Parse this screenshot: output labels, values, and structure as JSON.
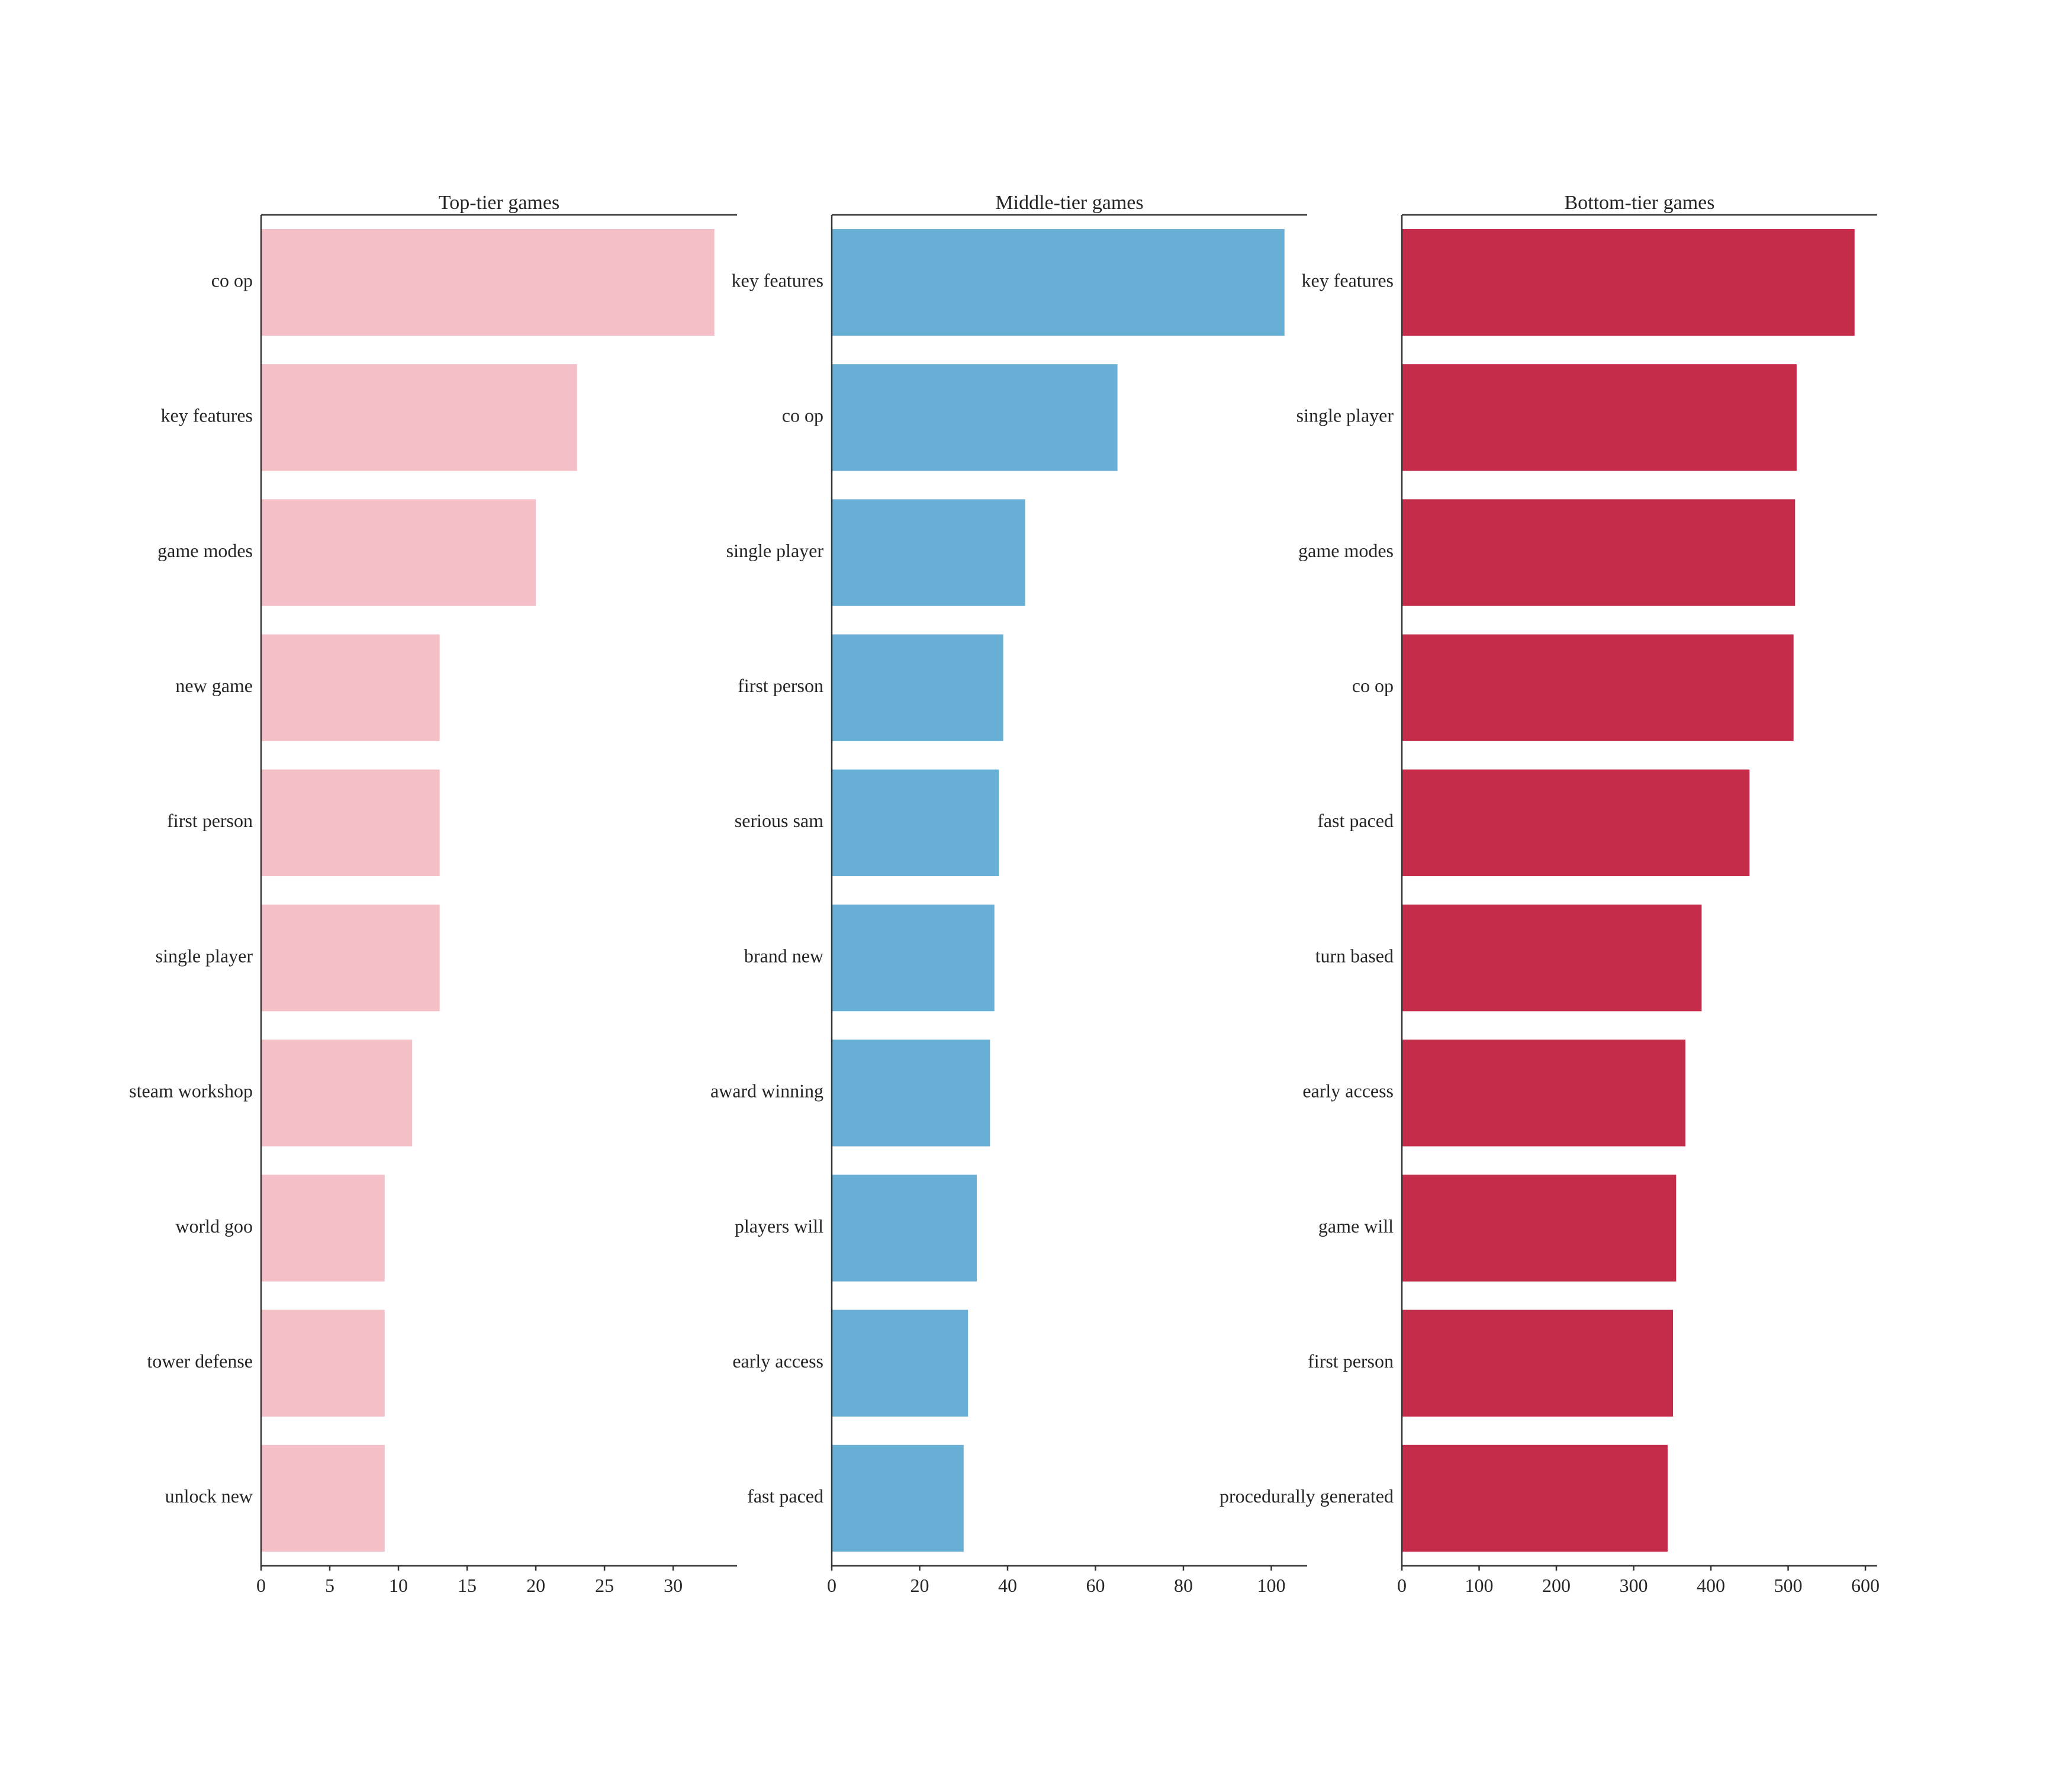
{
  "chart_data": [
    {
      "type": "bar",
      "orientation": "horizontal",
      "title": "Top-tier games",
      "color": "#f5bfc8",
      "categories": [
        "co op",
        "key features",
        "game modes",
        "new game",
        "first person",
        "single player",
        "steam workshop",
        "world goo",
        "tower defense",
        "unlock new"
      ],
      "values": [
        33,
        23,
        20,
        13,
        13,
        13,
        11,
        9,
        9,
        9
      ],
      "xticks": [
        "0",
        "5",
        "10",
        "15",
        "20",
        "25",
        "30"
      ],
      "xlim": [
        0,
        34.65
      ],
      "grid": false
    },
    {
      "type": "bar",
      "orientation": "horizontal",
      "title": "Middle-tier games",
      "color": "#68afd6",
      "categories": [
        "key features",
        "co op",
        "single player",
        "first person",
        "serious sam",
        "brand new",
        "award winning",
        "players will",
        "early access",
        "fast paced"
      ],
      "values": [
        103,
        65,
        44,
        39,
        38,
        37,
        36,
        33,
        31,
        30
      ],
      "xticks": [
        "0",
        "20",
        "40",
        "60",
        "80",
        "100"
      ],
      "xlim": [
        0,
        108.15
      ],
      "grid": false
    },
    {
      "type": "bar",
      "orientation": "horizontal",
      "title": "Bottom-tier games",
      "color": "#c42c4a",
      "categories": [
        "key features",
        "single player",
        "game modes",
        "co op",
        "fast paced",
        "turn based",
        "early access",
        "game will",
        "first person",
        "procedurally generated"
      ],
      "values": [
        586,
        511,
        509,
        507,
        450,
        388,
        367,
        355,
        351,
        344
      ],
      "xticks": [
        "0",
        "100",
        "200",
        "300",
        "400",
        "500",
        "600"
      ],
      "xlim": [
        0,
        615.3
      ],
      "grid": false
    }
  ]
}
